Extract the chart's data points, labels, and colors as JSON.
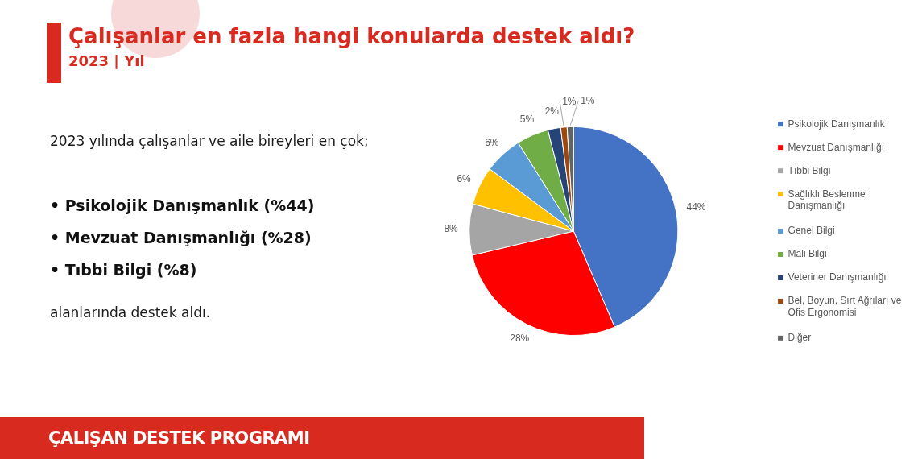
{
  "chart_data": {
    "type": "pie",
    "title": "Çalışanlar en fazla hangi konularda destek aldı?",
    "subtitle": "2023 | Yıl",
    "categories": [
      "Psikolojik Danışmanlık",
      "Mevzuat Danışmanlığı",
      "Tıbbi Bilgi",
      "Sağlıklı Beslenme Danışmanlığı",
      "Genel Bilgi",
      "Mali Bilgi",
      "Veteriner Danışmanlığı",
      "Bel, Boyun, Sırt Ağrıları ve Ofis Ergonomisi",
      "Diğer"
    ],
    "values": [
      44,
      28,
      8,
      6,
      6,
      5,
      2,
      1,
      1
    ],
    "value_labels": [
      "44%",
      "28%",
      "8%",
      "6%",
      "6%",
      "5%",
      "2%",
      "1%",
      "1%"
    ],
    "colors": [
      "#4472c4",
      "#ff0000",
      "#a5a5a5",
      "#ffc000",
      "#5b9bd5",
      "#70ad47",
      "#264478",
      "#9e480e",
      "#636363"
    ],
    "legend": "right",
    "annotations": [
      "2023 yılında çalışanlar ve aile bireyleri en çok;",
      "• Psikolojik Danışmanlık (%44)",
      "• Mevzuat Danışmanlığı (%28)",
      "• Tıbbi Bilgi (%8)",
      "alanlarında destek aldı.",
      "ÇALIŞAN DESTEK PROGRAMI"
    ]
  }
}
